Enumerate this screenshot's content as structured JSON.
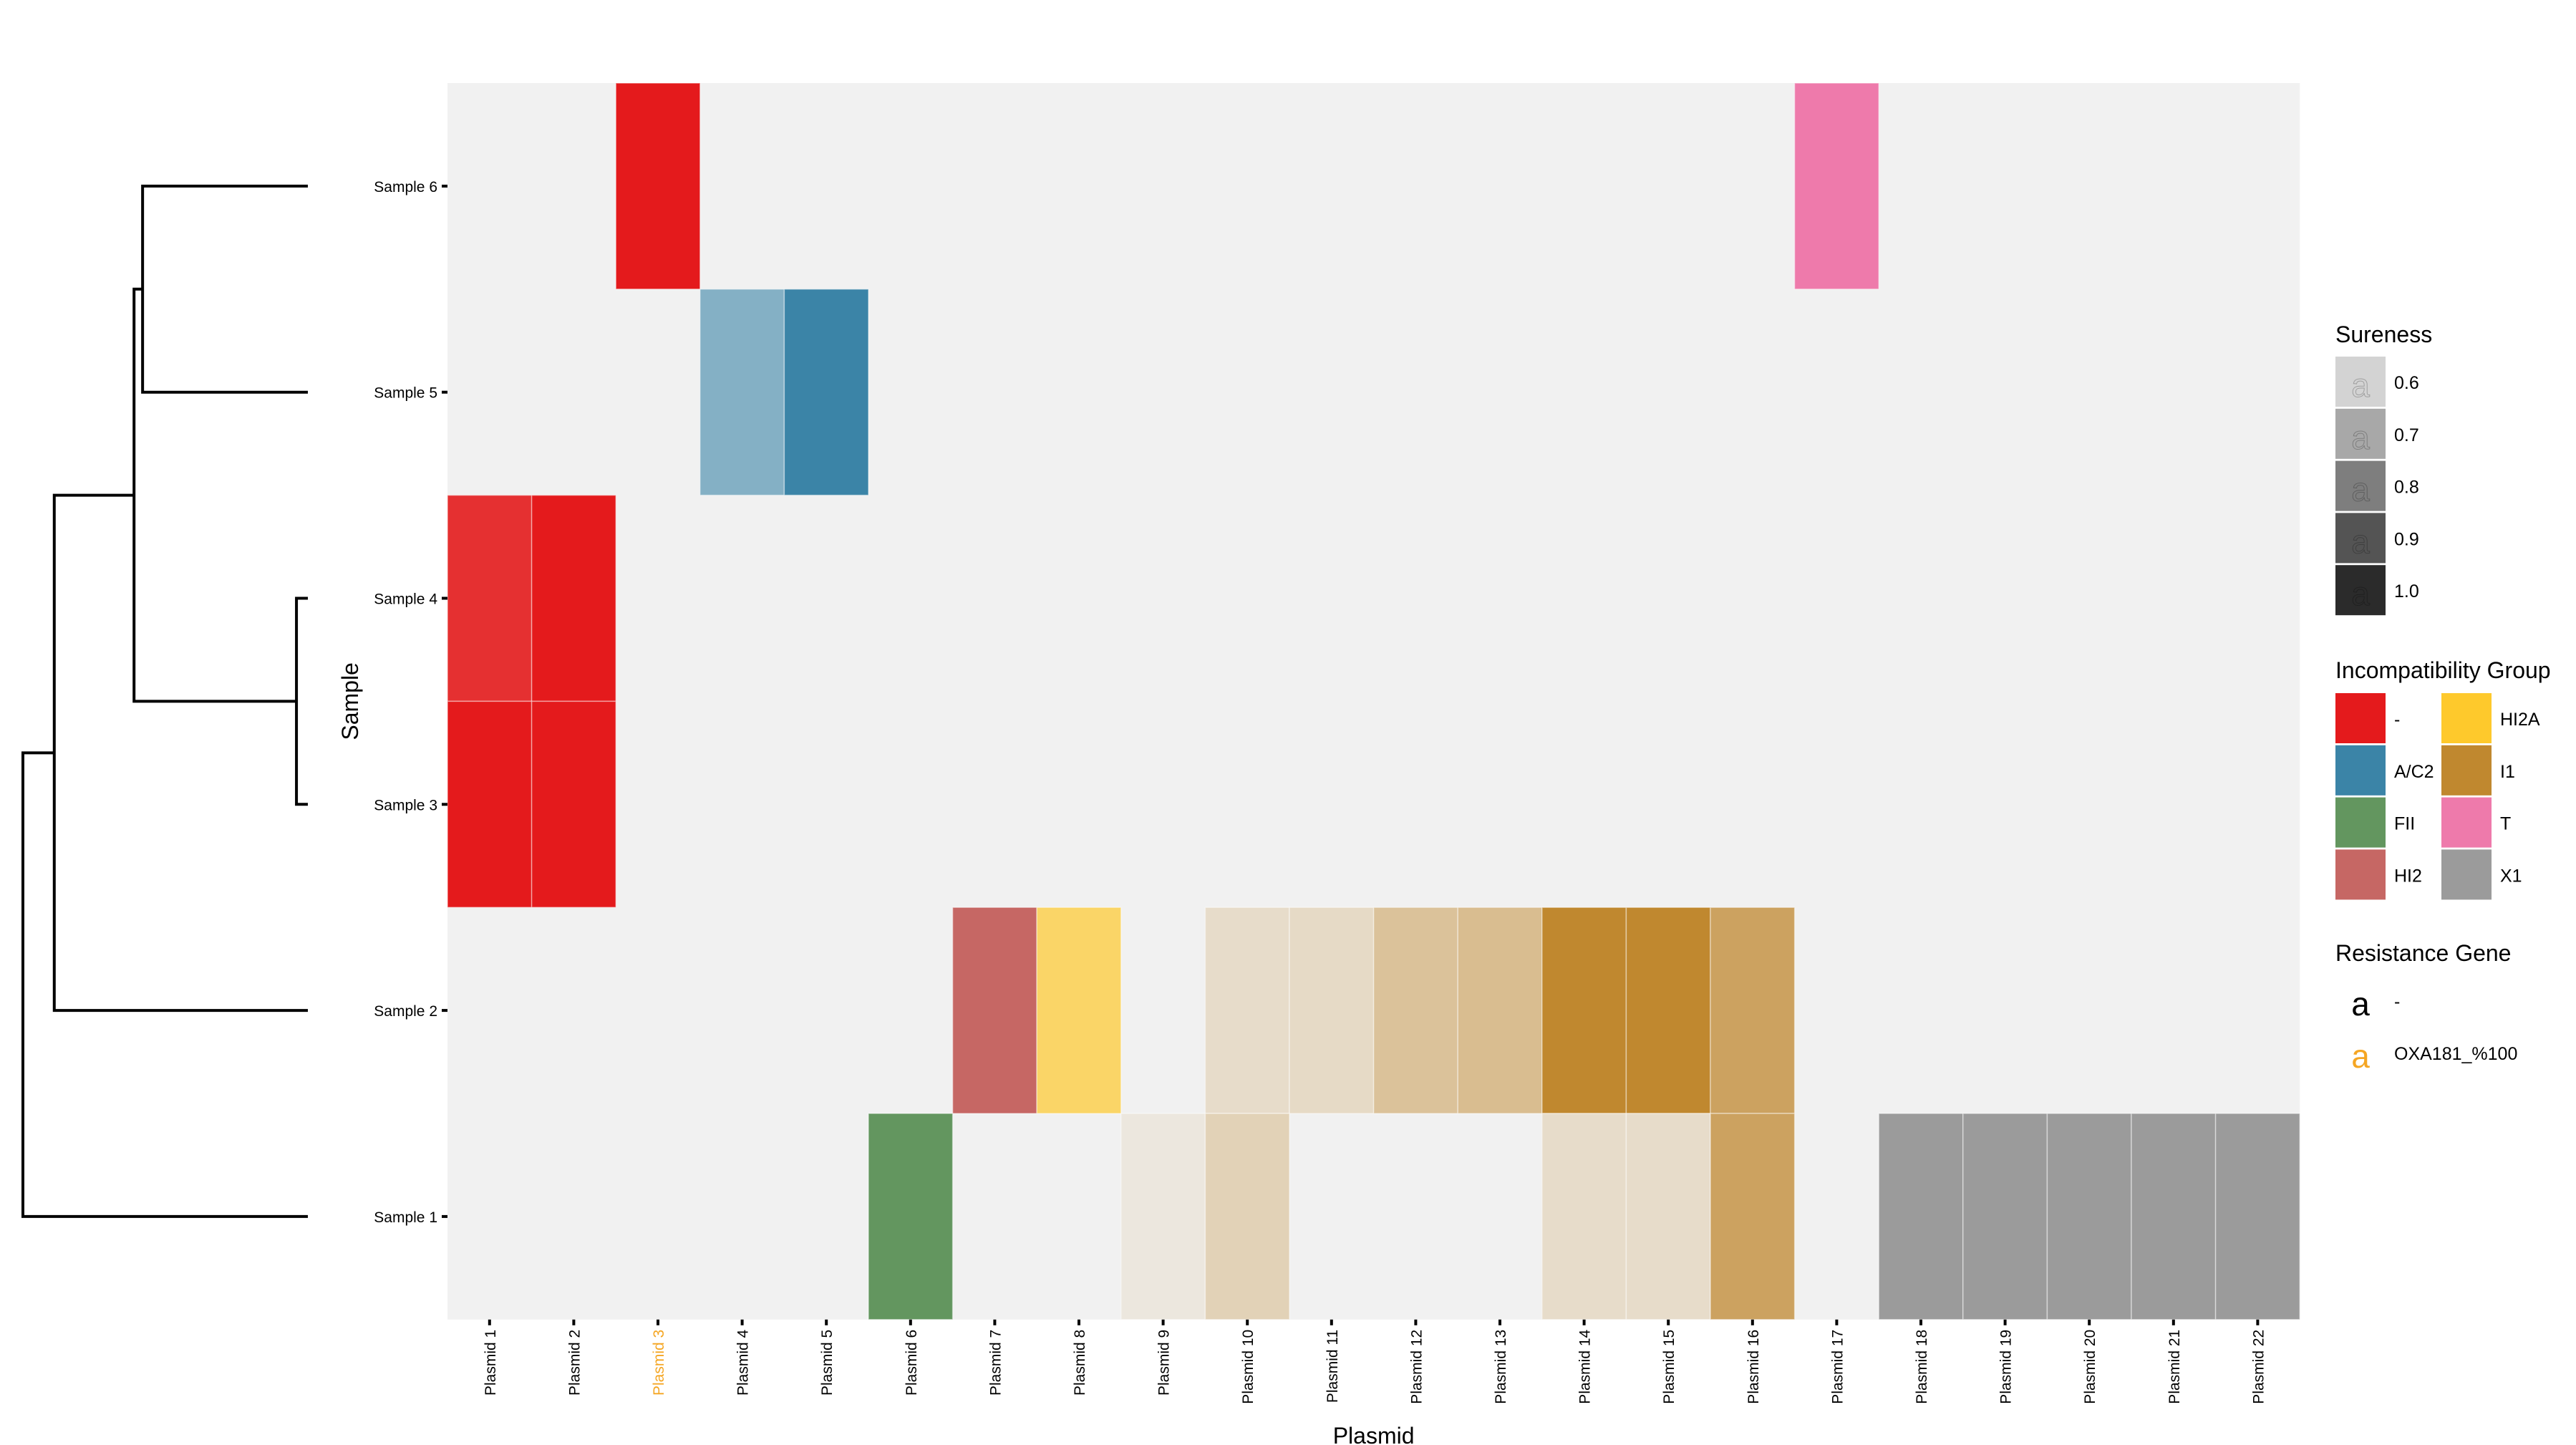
{
  "chart_data": {
    "type": "heatmap",
    "xlabel": "Plasmid",
    "ylabel": "Sample",
    "grid": false,
    "legend_position": "right",
    "x_categories": [
      "Plasmid 1",
      "Plasmid 2",
      "Plasmid 3",
      "Plasmid 4",
      "Plasmid 5",
      "Plasmid 6",
      "Plasmid 7",
      "Plasmid 8",
      "Plasmid 9",
      "Plasmid 10",
      "Plasmid 11",
      "Plasmid 12",
      "Plasmid 13",
      "Plasmid 14",
      "Plasmid 15",
      "Plasmid 16",
      "Plasmid 17",
      "Plasmid 18",
      "Plasmid 19",
      "Plasmid 20",
      "Plasmid 21",
      "Plasmid 22"
    ],
    "y_categories": [
      "Sample 1",
      "Sample 2",
      "Sample 3",
      "Sample 4",
      "Sample 5",
      "Sample 6"
    ],
    "x_tick_resistance": [
      "-",
      "-",
      "OXA181_%100",
      "-",
      "-",
      "-",
      "-",
      "-",
      "-",
      "-",
      "-",
      "-",
      "-",
      "-",
      "-",
      "-",
      "-",
      "-",
      "-",
      "-",
      "-",
      "-"
    ],
    "cells": [
      {
        "sample": "Sample 6",
        "plasmid": "Plasmid 3",
        "group": "-",
        "sureness": 1.0
      },
      {
        "sample": "Sample 6",
        "plasmid": "Plasmid 17",
        "group": "T",
        "sureness": 1.0
      },
      {
        "sample": "Sample 5",
        "plasmid": "Plasmid 4",
        "group": "A/C2",
        "sureness": 0.6
      },
      {
        "sample": "Sample 5",
        "plasmid": "Plasmid 5",
        "group": "A/C2",
        "sureness": 1.0
      },
      {
        "sample": "Sample 4",
        "plasmid": "Plasmid 1",
        "group": "-",
        "sureness": 0.9
      },
      {
        "sample": "Sample 4",
        "plasmid": "Plasmid 2",
        "group": "-",
        "sureness": 1.0
      },
      {
        "sample": "Sample 3",
        "plasmid": "Plasmid 1",
        "group": "-",
        "sureness": 1.0
      },
      {
        "sample": "Sample 3",
        "plasmid": "Plasmid 2",
        "group": "-",
        "sureness": 1.0
      },
      {
        "sample": "Sample 2",
        "plasmid": "Plasmid 7",
        "group": "HI2",
        "sureness": 1.0
      },
      {
        "sample": "Sample 2",
        "plasmid": "Plasmid 8",
        "group": "HI2A",
        "sureness": 0.7
      },
      {
        "sample": "Sample 2",
        "plasmid": "Plasmid 10",
        "group": "I1",
        "sureness": 0.2
      },
      {
        "sample": "Sample 2",
        "plasmid": "Plasmid 11",
        "group": "I1",
        "sureness": 0.22
      },
      {
        "sample": "Sample 2",
        "plasmid": "Plasmid 12",
        "group": "I1",
        "sureness": 0.45
      },
      {
        "sample": "Sample 2",
        "plasmid": "Plasmid 13",
        "group": "I1",
        "sureness": 0.5
      },
      {
        "sample": "Sample 2",
        "plasmid": "Plasmid 14",
        "group": "I1",
        "sureness": 1.0
      },
      {
        "sample": "Sample 2",
        "plasmid": "Plasmid 15",
        "group": "I1",
        "sureness": 1.0
      },
      {
        "sample": "Sample 2",
        "plasmid": "Plasmid 16",
        "group": "I1",
        "sureness": 0.75
      },
      {
        "sample": "Sample 1",
        "plasmid": "Plasmid 6",
        "group": "FII",
        "sureness": 1.0
      },
      {
        "sample": "Sample 1",
        "plasmid": "Plasmid 9",
        "group": "I1",
        "sureness": 0.1
      },
      {
        "sample": "Sample 1",
        "plasmid": "Plasmid 10",
        "group": "I1",
        "sureness": 0.3
      },
      {
        "sample": "Sample 1",
        "plasmid": "Plasmid 14",
        "group": "I1",
        "sureness": 0.2
      },
      {
        "sample": "Sample 1",
        "plasmid": "Plasmid 15",
        "group": "I1",
        "sureness": 0.2
      },
      {
        "sample": "Sample 1",
        "plasmid": "Plasmid 16",
        "group": "I1",
        "sureness": 0.75
      },
      {
        "sample": "Sample 1",
        "plasmid": "Plasmid 18",
        "group": "X1",
        "sureness": 1.0
      },
      {
        "sample": "Sample 1",
        "plasmid": "Plasmid 19",
        "group": "X1",
        "sureness": 1.0
      },
      {
        "sample": "Sample 1",
        "plasmid": "Plasmid 20",
        "group": "X1",
        "sureness": 1.0
      },
      {
        "sample": "Sample 1",
        "plasmid": "Plasmid 21",
        "group": "X1",
        "sureness": 1.0
      },
      {
        "sample": "Sample 1",
        "plasmid": "Plasmid 22",
        "group": "X1",
        "sureness": 1.0
      }
    ],
    "group_colors": {
      "-": "#e41a1c",
      "A/C2": "#3b84a7",
      "FII": "#63965f",
      "HI2": "#c66764",
      "HI2A": "#fec92c",
      "I1": "#c0882f",
      "T": "#ee7aab",
      "X1": "#9b9b9b"
    },
    "background_color": "#f1f1f1",
    "dendrogram": {
      "order": [
        "Sample 6",
        "Sample 5",
        "Sample 4",
        "Sample 3",
        "Sample 2",
        "Sample 1"
      ],
      "merges": [
        {
          "a": "Sample 3",
          "b": "Sample 4",
          "height": 0.04
        },
        {
          "a": "Sample 5",
          "b": "Sample 6",
          "height": 0.58
        },
        {
          "a": "(Sample 3, Sample 4)",
          "b": "(Sample 5, Sample 6)",
          "height": 0.61
        },
        {
          "a": "Sample 2",
          "b": "(Sample 3-6)",
          "height": 0.89
        },
        {
          "a": "Sample 1",
          "b": "(Sample 2-6)",
          "height": 1.0
        }
      ]
    },
    "legends": {
      "sureness": {
        "title": "Sureness",
        "glyph": "a",
        "values": [
          "0.6",
          "0.7",
          "0.8",
          "0.9",
          "1.0"
        ],
        "colors": [
          "#d3d3d3",
          "#a8a8a8",
          "#7e7e7e",
          "#545454",
          "#2b2b2b"
        ]
      },
      "incompatibility": {
        "title": "Incompatibility Group",
        "items": [
          "-",
          "A/C2",
          "FII",
          "HI2",
          "HI2A",
          "I1",
          "T",
          "X1"
        ]
      },
      "resistance": {
        "title": "Resistance Gene",
        "glyph": "a",
        "items": [
          {
            "label": "-",
            "color": "#000000"
          },
          {
            "label": "OXA181_%100",
            "color": "#f5a623"
          }
        ]
      }
    }
  }
}
